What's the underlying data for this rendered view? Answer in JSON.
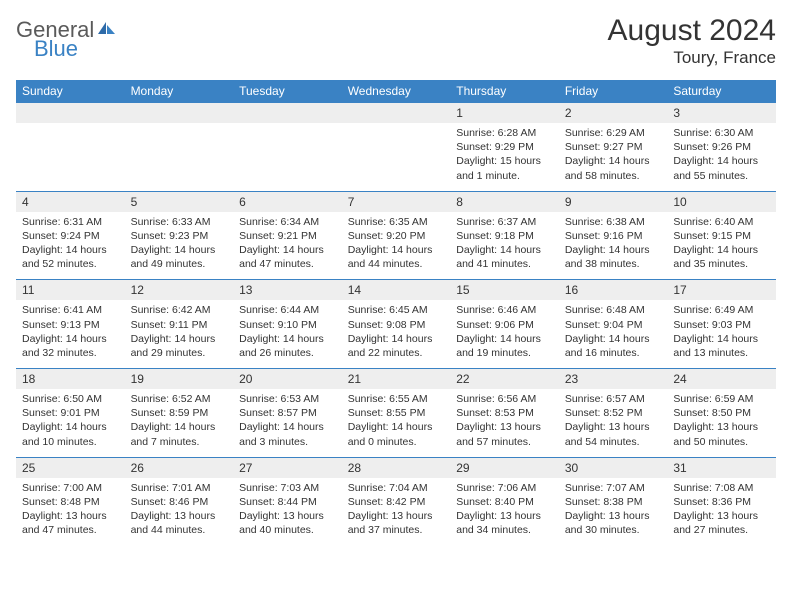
{
  "logo": {
    "text1": "General",
    "text2": "Blue"
  },
  "title": "August 2024",
  "location": "Toury, France",
  "colors": {
    "header_bg": "#3a82c4",
    "header_fg": "#ffffff",
    "daynum_bg": "#eeeeee",
    "text": "#333333",
    "logo_gray": "#5a5a5a",
    "logo_blue": "#3a82c4"
  },
  "weekdays": [
    "Sunday",
    "Monday",
    "Tuesday",
    "Wednesday",
    "Thursday",
    "Friday",
    "Saturday"
  ],
  "weeks": [
    [
      null,
      null,
      null,
      null,
      {
        "n": "1",
        "sr": "Sunrise: 6:28 AM",
        "ss": "Sunset: 9:29 PM",
        "dl": "Daylight: 15 hours and 1 minute."
      },
      {
        "n": "2",
        "sr": "Sunrise: 6:29 AM",
        "ss": "Sunset: 9:27 PM",
        "dl": "Daylight: 14 hours and 58 minutes."
      },
      {
        "n": "3",
        "sr": "Sunrise: 6:30 AM",
        "ss": "Sunset: 9:26 PM",
        "dl": "Daylight: 14 hours and 55 minutes."
      }
    ],
    [
      {
        "n": "4",
        "sr": "Sunrise: 6:31 AM",
        "ss": "Sunset: 9:24 PM",
        "dl": "Daylight: 14 hours and 52 minutes."
      },
      {
        "n": "5",
        "sr": "Sunrise: 6:33 AM",
        "ss": "Sunset: 9:23 PM",
        "dl": "Daylight: 14 hours and 49 minutes."
      },
      {
        "n": "6",
        "sr": "Sunrise: 6:34 AM",
        "ss": "Sunset: 9:21 PM",
        "dl": "Daylight: 14 hours and 47 minutes."
      },
      {
        "n": "7",
        "sr": "Sunrise: 6:35 AM",
        "ss": "Sunset: 9:20 PM",
        "dl": "Daylight: 14 hours and 44 minutes."
      },
      {
        "n": "8",
        "sr": "Sunrise: 6:37 AM",
        "ss": "Sunset: 9:18 PM",
        "dl": "Daylight: 14 hours and 41 minutes."
      },
      {
        "n": "9",
        "sr": "Sunrise: 6:38 AM",
        "ss": "Sunset: 9:16 PM",
        "dl": "Daylight: 14 hours and 38 minutes."
      },
      {
        "n": "10",
        "sr": "Sunrise: 6:40 AM",
        "ss": "Sunset: 9:15 PM",
        "dl": "Daylight: 14 hours and 35 minutes."
      }
    ],
    [
      {
        "n": "11",
        "sr": "Sunrise: 6:41 AM",
        "ss": "Sunset: 9:13 PM",
        "dl": "Daylight: 14 hours and 32 minutes."
      },
      {
        "n": "12",
        "sr": "Sunrise: 6:42 AM",
        "ss": "Sunset: 9:11 PM",
        "dl": "Daylight: 14 hours and 29 minutes."
      },
      {
        "n": "13",
        "sr": "Sunrise: 6:44 AM",
        "ss": "Sunset: 9:10 PM",
        "dl": "Daylight: 14 hours and 26 minutes."
      },
      {
        "n": "14",
        "sr": "Sunrise: 6:45 AM",
        "ss": "Sunset: 9:08 PM",
        "dl": "Daylight: 14 hours and 22 minutes."
      },
      {
        "n": "15",
        "sr": "Sunrise: 6:46 AM",
        "ss": "Sunset: 9:06 PM",
        "dl": "Daylight: 14 hours and 19 minutes."
      },
      {
        "n": "16",
        "sr": "Sunrise: 6:48 AM",
        "ss": "Sunset: 9:04 PM",
        "dl": "Daylight: 14 hours and 16 minutes."
      },
      {
        "n": "17",
        "sr": "Sunrise: 6:49 AM",
        "ss": "Sunset: 9:03 PM",
        "dl": "Daylight: 14 hours and 13 minutes."
      }
    ],
    [
      {
        "n": "18",
        "sr": "Sunrise: 6:50 AM",
        "ss": "Sunset: 9:01 PM",
        "dl": "Daylight: 14 hours and 10 minutes."
      },
      {
        "n": "19",
        "sr": "Sunrise: 6:52 AM",
        "ss": "Sunset: 8:59 PM",
        "dl": "Daylight: 14 hours and 7 minutes."
      },
      {
        "n": "20",
        "sr": "Sunrise: 6:53 AM",
        "ss": "Sunset: 8:57 PM",
        "dl": "Daylight: 14 hours and 3 minutes."
      },
      {
        "n": "21",
        "sr": "Sunrise: 6:55 AM",
        "ss": "Sunset: 8:55 PM",
        "dl": "Daylight: 14 hours and 0 minutes."
      },
      {
        "n": "22",
        "sr": "Sunrise: 6:56 AM",
        "ss": "Sunset: 8:53 PM",
        "dl": "Daylight: 13 hours and 57 minutes."
      },
      {
        "n": "23",
        "sr": "Sunrise: 6:57 AM",
        "ss": "Sunset: 8:52 PM",
        "dl": "Daylight: 13 hours and 54 minutes."
      },
      {
        "n": "24",
        "sr": "Sunrise: 6:59 AM",
        "ss": "Sunset: 8:50 PM",
        "dl": "Daylight: 13 hours and 50 minutes."
      }
    ],
    [
      {
        "n": "25",
        "sr": "Sunrise: 7:00 AM",
        "ss": "Sunset: 8:48 PM",
        "dl": "Daylight: 13 hours and 47 minutes."
      },
      {
        "n": "26",
        "sr": "Sunrise: 7:01 AM",
        "ss": "Sunset: 8:46 PM",
        "dl": "Daylight: 13 hours and 44 minutes."
      },
      {
        "n": "27",
        "sr": "Sunrise: 7:03 AM",
        "ss": "Sunset: 8:44 PM",
        "dl": "Daylight: 13 hours and 40 minutes."
      },
      {
        "n": "28",
        "sr": "Sunrise: 7:04 AM",
        "ss": "Sunset: 8:42 PM",
        "dl": "Daylight: 13 hours and 37 minutes."
      },
      {
        "n": "29",
        "sr": "Sunrise: 7:06 AM",
        "ss": "Sunset: 8:40 PM",
        "dl": "Daylight: 13 hours and 34 minutes."
      },
      {
        "n": "30",
        "sr": "Sunrise: 7:07 AM",
        "ss": "Sunset: 8:38 PM",
        "dl": "Daylight: 13 hours and 30 minutes."
      },
      {
        "n": "31",
        "sr": "Sunrise: 7:08 AM",
        "ss": "Sunset: 8:36 PM",
        "dl": "Daylight: 13 hours and 27 minutes."
      }
    ]
  ]
}
